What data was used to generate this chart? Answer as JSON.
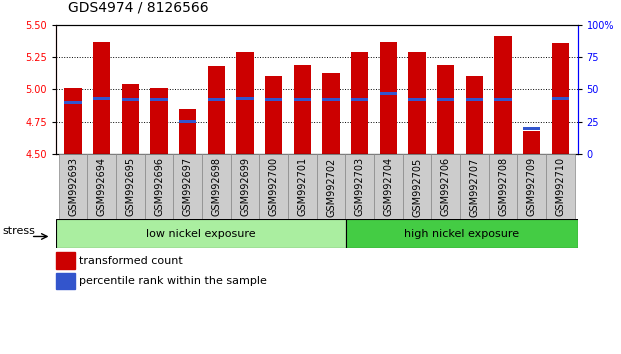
{
  "title": "GDS4974 / 8126566",
  "samples": [
    "GSM992693",
    "GSM992694",
    "GSM992695",
    "GSM992696",
    "GSM992697",
    "GSM992698",
    "GSM992699",
    "GSM992700",
    "GSM992701",
    "GSM992702",
    "GSM992703",
    "GSM992704",
    "GSM992705",
    "GSM992706",
    "GSM992707",
    "GSM992708",
    "GSM992709",
    "GSM992710"
  ],
  "red_values": [
    5.01,
    5.37,
    5.04,
    5.01,
    4.85,
    5.18,
    5.29,
    5.1,
    5.19,
    5.13,
    5.29,
    5.37,
    5.29,
    5.19,
    5.1,
    5.41,
    4.68,
    5.36
  ],
  "blue_percentiles": [
    40,
    43,
    42,
    42,
    25,
    42,
    43,
    42,
    42,
    42,
    42,
    47,
    42,
    42,
    42,
    42,
    20,
    43
  ],
  "baseline": 4.5,
  "ylim_left": [
    4.5,
    5.5
  ],
  "ylim_right": [
    0,
    100
  ],
  "yticks_left": [
    4.5,
    4.75,
    5.0,
    5.25,
    5.5
  ],
  "yticks_right": [
    0,
    25,
    50,
    75,
    100
  ],
  "group1_label": "low nickel exposure",
  "group1_count": 10,
  "group2_label": "high nickel exposure",
  "group2_count": 8,
  "stress_label": "stress",
  "bar_color": "#cc0000",
  "blue_color": "#3355cc",
  "group1_color": "#aaeea0",
  "group2_color": "#44cc44",
  "tick_bg_color": "#cccccc",
  "legend_red": "transformed count",
  "legend_blue": "percentile rank within the sample",
  "title_fontsize": 10,
  "tick_fontsize": 7,
  "label_fontsize": 8,
  "gridline_ticks": [
    4.75,
    5.0,
    5.25
  ]
}
